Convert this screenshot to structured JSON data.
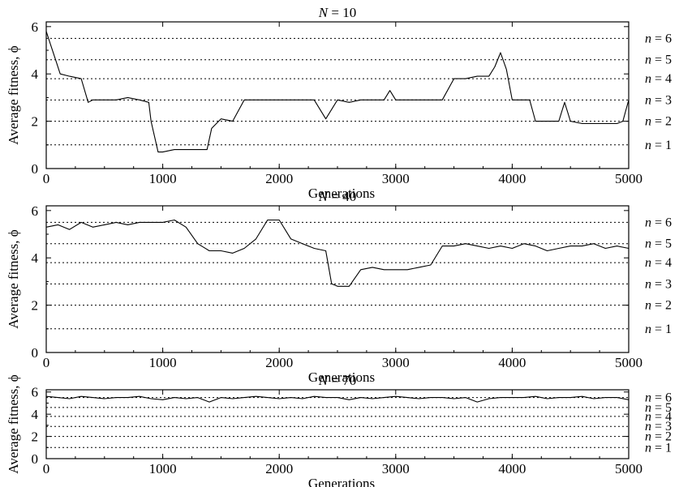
{
  "chart_data": [
    {
      "type": "line",
      "title": "N=10",
      "title_parts": {
        "var": "N",
        "value": "10"
      },
      "xlabel": "Generations",
      "ylabel": "Average fitness, ϕ",
      "xlim": [
        0,
        5000
      ],
      "ylim": [
        0,
        6.2
      ],
      "xticks": [
        0,
        1000,
        2000,
        3000,
        4000,
        5000
      ],
      "yticks": [
        0,
        2,
        4,
        6
      ],
      "levels": [
        {
          "label": "n=1",
          "value": 1
        },
        {
          "label": "n=2",
          "value": 2
        },
        {
          "label": "n=3",
          "value": 2.9
        },
        {
          "label": "n=4",
          "value": 3.8
        },
        {
          "label": "n=5",
          "value": 4.6
        },
        {
          "label": "n=6",
          "value": 5.5
        }
      ],
      "series": [
        {
          "x": [
            0,
            40,
            80,
            120,
            200,
            300,
            360,
            400,
            500,
            600,
            700,
            800,
            880,
            900,
            960,
            1000,
            1100,
            1200,
            1300,
            1380,
            1420,
            1500,
            1600,
            1700,
            1800,
            1900,
            2000,
            2100,
            2200,
            2300,
            2400,
            2500,
            2600,
            2700,
            2800,
            2900,
            2950,
            3000,
            3100,
            3200,
            3300,
            3400,
            3500,
            3600,
            3700,
            3800,
            3850,
            3900,
            3950,
            4000,
            4100,
            4150,
            4200,
            4300,
            4400,
            4450,
            4500,
            4600,
            4700,
            4800,
            4900,
            4950,
            5000
          ],
          "y": [
            5.8,
            5.2,
            4.6,
            4.0,
            3.9,
            3.8,
            2.8,
            2.9,
            2.9,
            2.9,
            3.0,
            2.9,
            2.8,
            2.0,
            0.7,
            0.7,
            0.8,
            0.8,
            0.8,
            0.8,
            1.7,
            2.1,
            2.0,
            2.9,
            2.9,
            2.9,
            2.9,
            2.9,
            2.9,
            2.9,
            2.1,
            2.9,
            2.8,
            2.9,
            2.9,
            2.9,
            3.3,
            2.9,
            2.9,
            2.9,
            2.9,
            2.9,
            3.8,
            3.8,
            3.9,
            3.9,
            4.3,
            4.9,
            4.2,
            2.9,
            2.9,
            2.9,
            2.0,
            2.0,
            2.0,
            2.8,
            2.0,
            1.9,
            1.9,
            1.9,
            1.9,
            2.0,
            2.9
          ]
        }
      ]
    },
    {
      "type": "line",
      "title": "N=40",
      "title_parts": {
        "var": "N",
        "value": "40"
      },
      "xlabel": "Generations",
      "ylabel": "Average fitness, ϕ",
      "xlim": [
        0,
        5000
      ],
      "ylim": [
        0,
        6.2
      ],
      "xticks": [
        0,
        1000,
        2000,
        3000,
        4000,
        5000
      ],
      "yticks": [
        0,
        2,
        4,
        6
      ],
      "levels": [
        {
          "label": "n=1",
          "value": 1
        },
        {
          "label": "n=2",
          "value": 2
        },
        {
          "label": "n=3",
          "value": 2.9
        },
        {
          "label": "n=4",
          "value": 3.8
        },
        {
          "label": "n=5",
          "value": 4.6
        },
        {
          "label": "n=6",
          "value": 5.5
        }
      ],
      "series": [
        {
          "x": [
            0,
            100,
            200,
            300,
            400,
            500,
            600,
            700,
            800,
            900,
            1000,
            1100,
            1200,
            1300,
            1400,
            1500,
            1600,
            1700,
            1800,
            1900,
            2000,
            2100,
            2200,
            2300,
            2400,
            2450,
            2500,
            2600,
            2700,
            2800,
            2900,
            3000,
            3100,
            3200,
            3300,
            3400,
            3500,
            3600,
            3700,
            3800,
            3900,
            4000,
            4100,
            4200,
            4300,
            4400,
            4500,
            4600,
            4700,
            4800,
            4900,
            5000
          ],
          "y": [
            5.3,
            5.4,
            5.2,
            5.5,
            5.3,
            5.4,
            5.5,
            5.4,
            5.5,
            5.5,
            5.5,
            5.6,
            5.3,
            4.6,
            4.3,
            4.3,
            4.2,
            4.4,
            4.8,
            5.6,
            5.6,
            4.8,
            4.6,
            4.4,
            4.3,
            2.9,
            2.8,
            2.8,
            3.5,
            3.6,
            3.5,
            3.5,
            3.5,
            3.6,
            3.7,
            4.5,
            4.5,
            4.6,
            4.5,
            4.4,
            4.5,
            4.4,
            4.6,
            4.5,
            4.3,
            4.4,
            4.5,
            4.5,
            4.6,
            4.4,
            4.5,
            4.4
          ]
        }
      ]
    },
    {
      "type": "line",
      "title": "N=70",
      "title_parts": {
        "var": "N",
        "value": "70"
      },
      "xlabel": "Generations",
      "ylabel": "Average fitness, ϕ",
      "xlim": [
        0,
        5000
      ],
      "ylim": [
        0,
        6.2
      ],
      "xticks": [
        0,
        1000,
        2000,
        3000,
        4000,
        5000
      ],
      "yticks": [
        0,
        2,
        4,
        6
      ],
      "levels": [
        {
          "label": "n=1",
          "value": 1
        },
        {
          "label": "n=2",
          "value": 2
        },
        {
          "label": "n=3",
          "value": 2.9
        },
        {
          "label": "n=4",
          "value": 3.8
        },
        {
          "label": "n=5",
          "value": 4.6
        },
        {
          "label": "n=6",
          "value": 5.5
        }
      ],
      "series": [
        {
          "x": [
            0,
            100,
            200,
            300,
            400,
            500,
            600,
            700,
            800,
            900,
            1000,
            1100,
            1200,
            1300,
            1400,
            1500,
            1600,
            1700,
            1800,
            1900,
            2000,
            2100,
            2200,
            2300,
            2400,
            2500,
            2600,
            2700,
            2800,
            2900,
            3000,
            3100,
            3200,
            3300,
            3400,
            3500,
            3600,
            3700,
            3800,
            3900,
            4000,
            4100,
            4200,
            4300,
            4400,
            4500,
            4600,
            4700,
            4800,
            4900,
            5000
          ],
          "y": [
            5.6,
            5.5,
            5.4,
            5.6,
            5.5,
            5.4,
            5.5,
            5.5,
            5.6,
            5.4,
            5.3,
            5.5,
            5.4,
            5.5,
            5.1,
            5.5,
            5.4,
            5.5,
            5.6,
            5.5,
            5.4,
            5.5,
            5.4,
            5.6,
            5.5,
            5.5,
            5.3,
            5.5,
            5.4,
            5.5,
            5.6,
            5.5,
            5.4,
            5.5,
            5.5,
            5.4,
            5.5,
            5.1,
            5.4,
            5.5,
            5.5,
            5.5,
            5.6,
            5.4,
            5.5,
            5.5,
            5.6,
            5.4,
            5.5,
            5.5,
            5.3
          ]
        }
      ]
    }
  ]
}
